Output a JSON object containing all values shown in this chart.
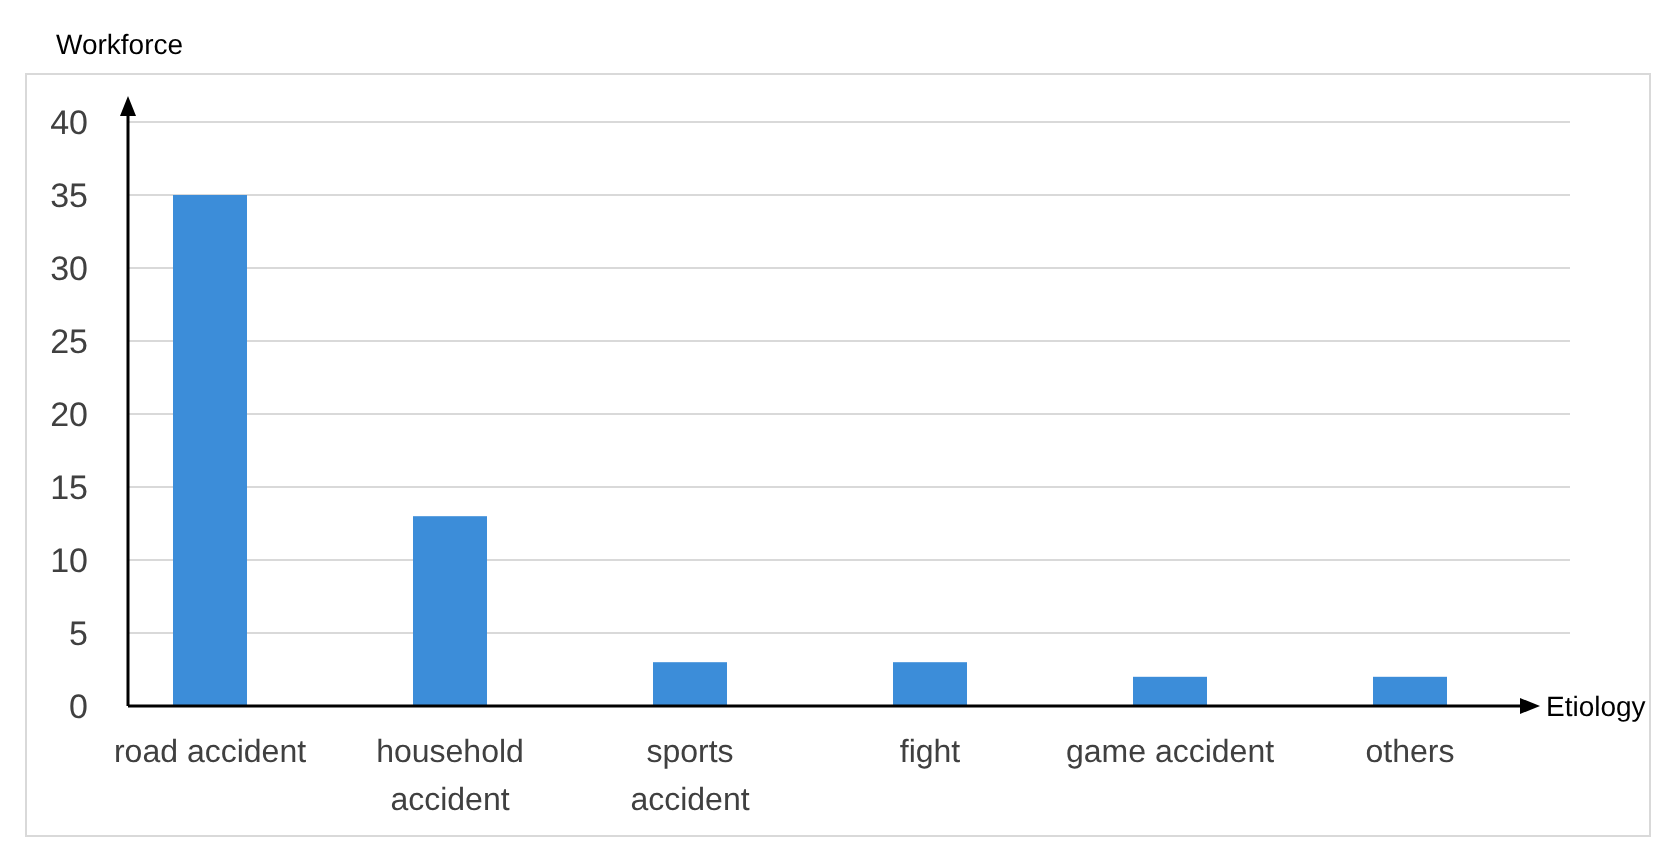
{
  "chart_data": {
    "type": "bar",
    "xlabel": "Etiology",
    "ylabel": "Workforce",
    "categories": [
      "road accident",
      "household accident",
      "sports accident",
      "fight",
      "game accident",
      "others"
    ],
    "values": [
      35,
      13,
      3,
      3,
      2,
      2
    ],
    "color": "#3c8dd9",
    "ylim": [
      0,
      40
    ],
    "yticks": [
      0,
      5,
      10,
      15,
      20,
      25,
      30,
      35,
      40
    ],
    "grid": "y"
  }
}
